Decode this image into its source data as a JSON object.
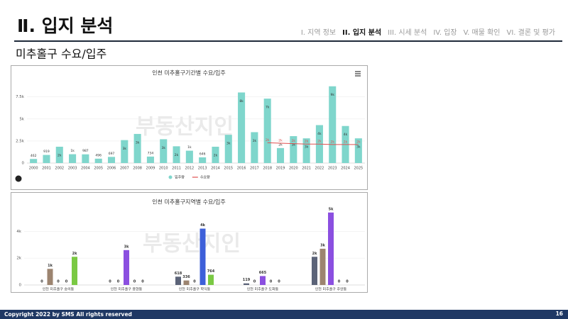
{
  "header": {
    "title": "Ⅱ. 입지 분석",
    "nav": [
      "I. 지역 정보",
      "II. 입지 분석",
      "III. 시세 분석",
      "IV. 입장",
      "V. 매물 확인",
      "VI. 결론 및 평가"
    ],
    "active": 1
  },
  "subtitle": "미추홀구 수요/입주",
  "watermark": "부동산지인",
  "footer": {
    "copyright": "Copyright 2022 by SMS All rights reserved",
    "page": "16"
  },
  "chart_data": [
    {
      "type": "bar",
      "title": "인천 미추홀구기간별 수요/입주",
      "categories": [
        "2000",
        "2001",
        "2002",
        "2003",
        "2004",
        "2005",
        "2006",
        "2007",
        "2008",
        "2009",
        "2010",
        "2011",
        "2012",
        "2013",
        "2014",
        "2015",
        "2016",
        "2017",
        "2018",
        "2019",
        "2020",
        "2021",
        "2022",
        "2023",
        "2024",
        "2025"
      ],
      "series": [
        {
          "name": "입주량",
          "type": "bar",
          "color": "#7fd6cc",
          "values": [
            462,
            919,
            1850,
            1000,
            987,
            496,
            697,
            2600,
            3300,
            734,
            2700,
            1900,
            1400,
            646,
            1850,
            3200,
            8000,
            3500,
            7300,
            1700,
            3050,
            2800,
            4300,
            8700,
            4200,
            2800
          ],
          "value_labels": [
            "462",
            "919",
            "2k",
            "1k",
            "987",
            "496",
            "697",
            "3k",
            "3k",
            "734",
            "3k",
            "2k",
            "1k",
            "646",
            "2k",
            "3k",
            "8k",
            "3k",
            "7k",
            "2k",
            "3k",
            "3k",
            "4k",
            "9k",
            "4k",
            "3k"
          ]
        },
        {
          "name": "수요량",
          "type": "line",
          "color": "#e05050",
          "values": [
            null,
            null,
            null,
            null,
            null,
            null,
            null,
            null,
            null,
            null,
            null,
            null,
            null,
            null,
            null,
            null,
            null,
            null,
            2300,
            2250,
            2200,
            2150,
            2150,
            2100,
            2100,
            2100
          ],
          "value_labels": [
            null,
            null,
            null,
            null,
            null,
            null,
            null,
            null,
            null,
            null,
            null,
            null,
            null,
            null,
            null,
            null,
            null,
            null,
            "2k",
            "2k",
            "2k",
            "2k",
            "2k",
            "2k",
            "2k",
            "2k"
          ]
        }
      ],
      "ylim": [
        0,
        9000
      ],
      "yticks": [
        0,
        {
          "value": 2500,
          "label": "2.5k"
        },
        {
          "value": 5000,
          "label": "5k"
        },
        {
          "value": 7500,
          "label": "7.5k"
        }
      ],
      "legend": "bottom"
    },
    {
      "type": "bar",
      "title": "인천 미추홀구지역별 수요/입주",
      "categories": [
        "인천 미추홀구 숭의동",
        "인천 미추홀구 용현동",
        "인천 미추홀구 학익동",
        "인천 미추홀구 도화동",
        "인천 미추홀구 주안동"
      ],
      "series": [
        {
          "type": "bar",
          "color": "#5b6378",
          "values": [
            0,
            0,
            618,
            119,
            2100
          ],
          "value_labels": [
            "0",
            "0",
            "618",
            "119",
            "2k"
          ]
        },
        {
          "type": "bar",
          "color": "#9c8470",
          "values": [
            1200,
            0,
            336,
            0,
            2700
          ],
          "value_labels": [
            "1k",
            "0",
            "336",
            "0",
            "3k"
          ]
        },
        {
          "type": "bar",
          "color": "#8b4fe0",
          "values": [
            0,
            2600,
            0,
            665,
            5400
          ],
          "value_labels": [
            "0",
            "3k",
            "0",
            "665",
            "5k"
          ]
        },
        {
          "type": "bar",
          "color": "#3d5fd9",
          "values": [
            0,
            0,
            4200,
            0,
            0
          ],
          "value_labels": [
            "0",
            "0",
            "4k",
            "0",
            "0"
          ]
        },
        {
          "type": "bar",
          "color": "#7ac943",
          "values": [
            2100,
            0,
            764,
            0,
            0
          ],
          "value_labels": [
            "2k",
            "0",
            "764",
            "0",
            "0"
          ]
        }
      ],
      "ylim": [
        0,
        5600
      ],
      "yticks": [
        0,
        {
          "value": 2000,
          "label": "2k"
        },
        {
          "value": 4000,
          "label": "4k"
        }
      ]
    }
  ]
}
